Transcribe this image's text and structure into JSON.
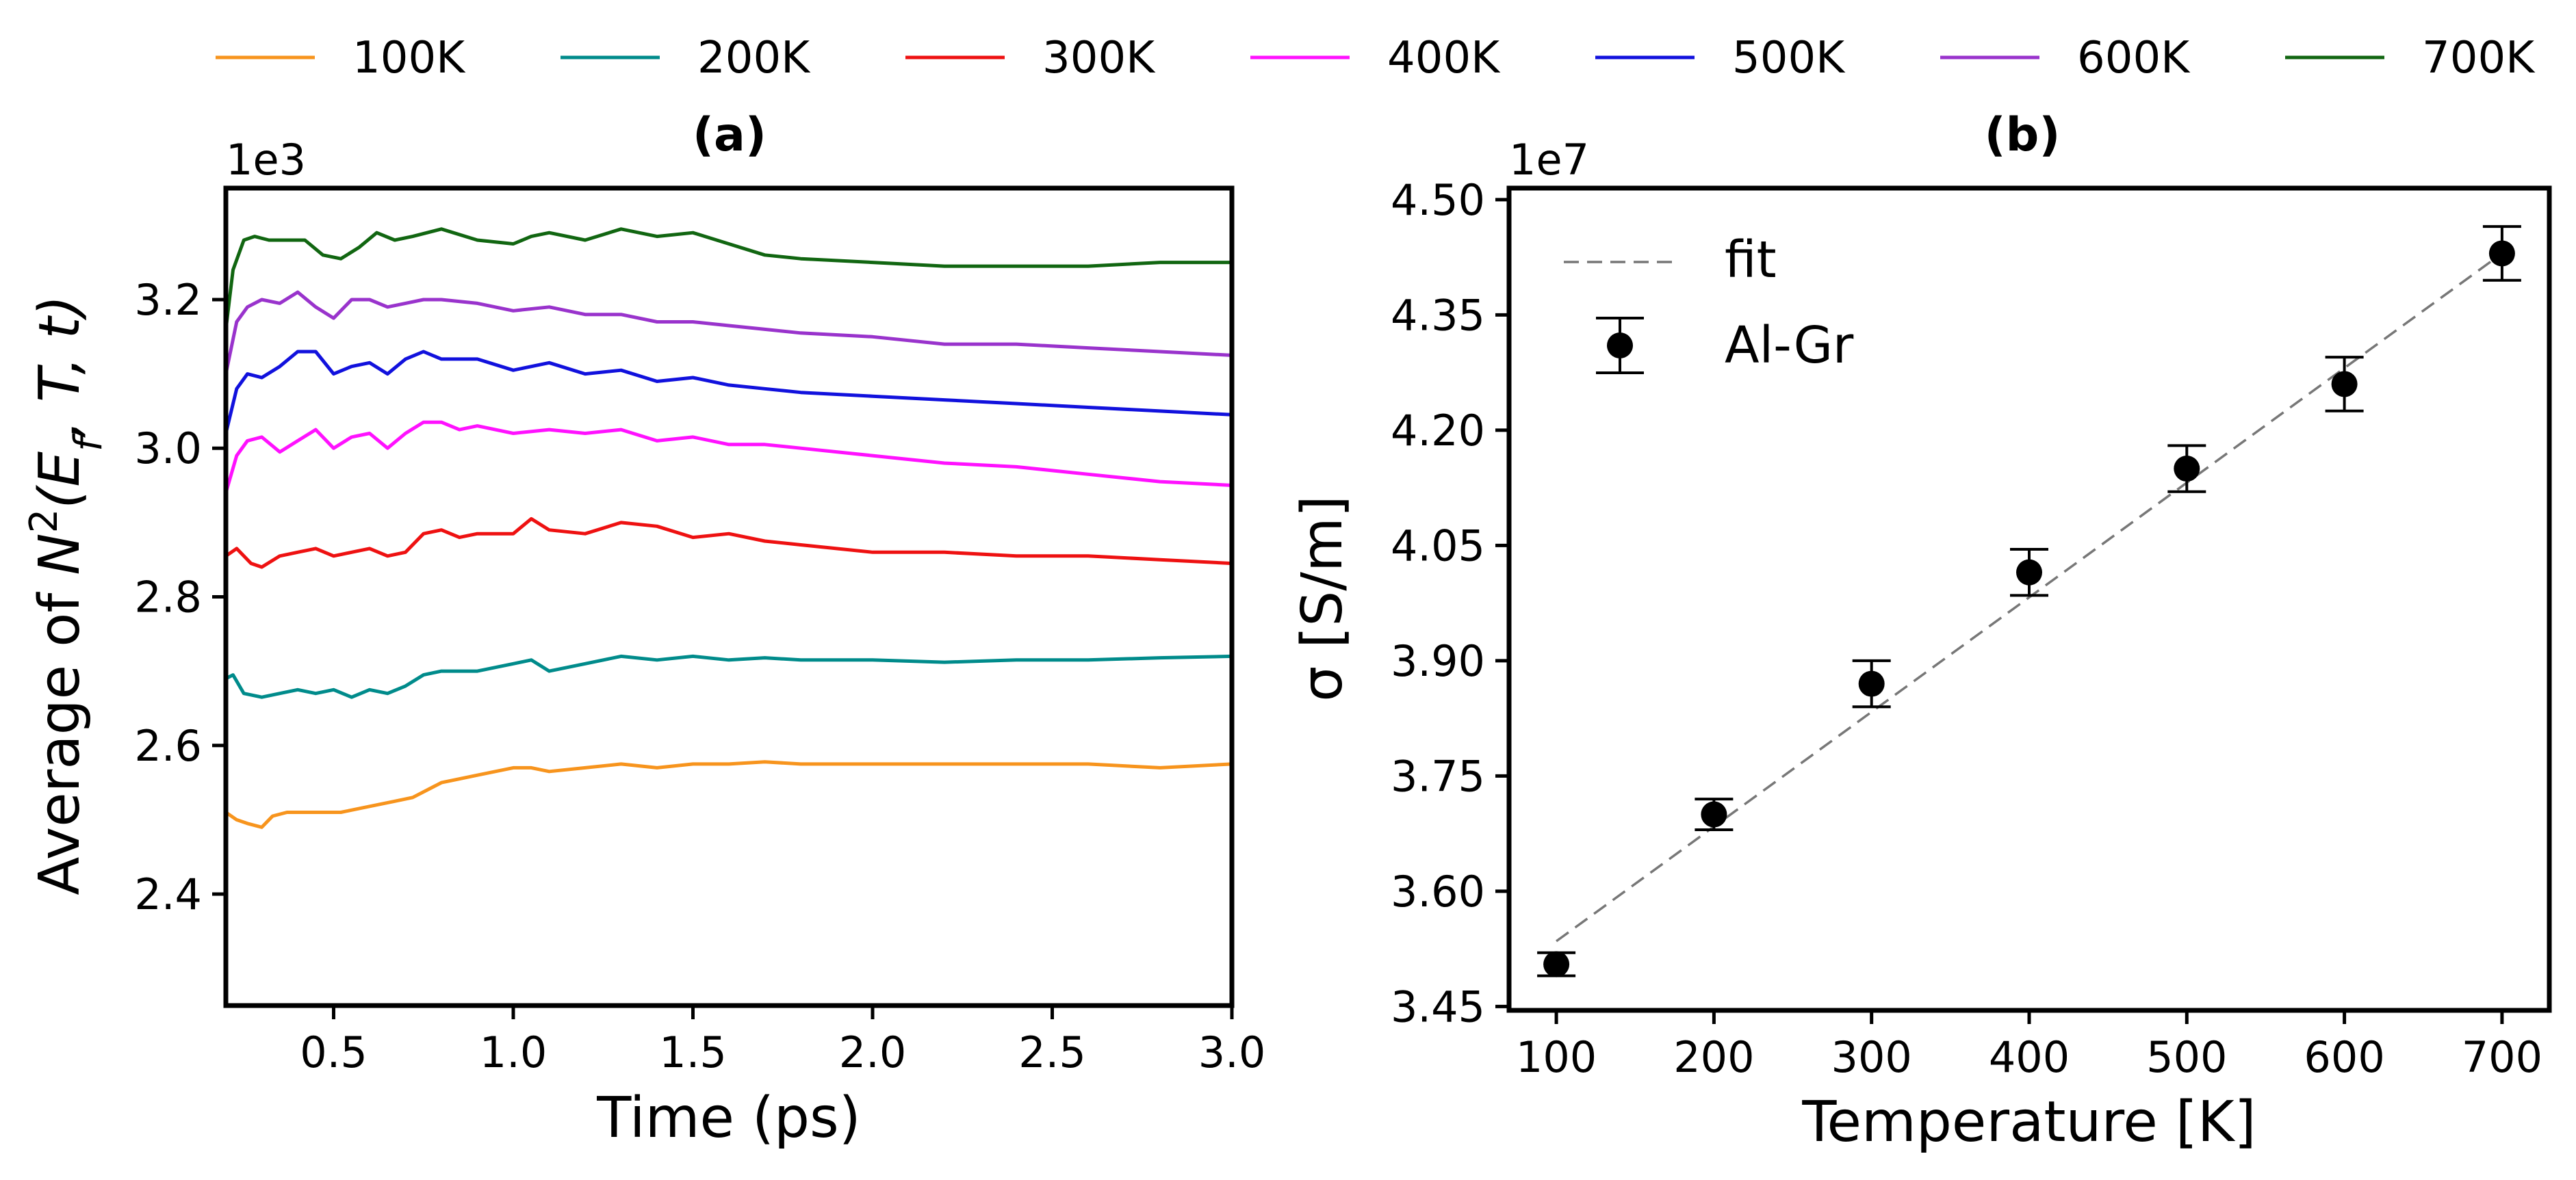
{
  "legend": {
    "placement": "top-center",
    "entries": [
      {
        "name": "100K",
        "color": "#f7941d"
      },
      {
        "name": "200K",
        "color": "#008b8b"
      },
      {
        "name": "300K",
        "color": "#ee1111"
      },
      {
        "name": "400K",
        "color": "#ff11ff"
      },
      {
        "name": "500K",
        "color": "#1111dd"
      },
      {
        "name": "600K",
        "color": "#9933cc"
      },
      {
        "name": "700K",
        "color": "#116611"
      }
    ]
  },
  "chart_data": [
    {
      "type": "line",
      "panel_label": "(a)",
      "title": "",
      "xlabel": "Time (ps)",
      "ylabel_parts": {
        "prefix": "Average of ",
        "symbol": "N",
        "sup": "2",
        "args": "(E",
        "sub": "f",
        "rest": ", T, t)"
      },
      "y_offset_text": "1e3",
      "xlim": [
        0.2,
        3.0
      ],
      "ylim": [
        2.25,
        3.35
      ],
      "x_ticks": [
        0.5,
        1.0,
        1.5,
        2.0,
        2.5,
        3.0
      ],
      "x_tick_labels": [
        "0.5",
        "1.0",
        "1.5",
        "2.0",
        "2.5",
        "3.0"
      ],
      "y_ticks": [
        2.4,
        2.6,
        2.8,
        3.0,
        3.2
      ],
      "y_tick_labels": [
        "2.4",
        "2.6",
        "2.8",
        "3.0",
        "3.2"
      ],
      "grid": false,
      "series": [
        {
          "name": "100K",
          "color": "#f7941d",
          "x": [
            0.2,
            0.23,
            0.26,
            0.3,
            0.33,
            0.37,
            0.42,
            0.47,
            0.52,
            0.57,
            0.62,
            0.67,
            0.72,
            0.8,
            0.9,
            1.0,
            1.05,
            1.1,
            1.2,
            1.3,
            1.4,
            1.5,
            1.6,
            1.7,
            1.8,
            2.0,
            2.2,
            2.4,
            2.6,
            2.8,
            3.0
          ],
          "y": [
            2.51,
            2.5,
            2.495,
            2.49,
            2.505,
            2.51,
            2.51,
            2.51,
            2.51,
            2.515,
            2.52,
            2.525,
            2.53,
            2.55,
            2.56,
            2.57,
            2.57,
            2.565,
            2.57,
            2.575,
            2.57,
            2.575,
            2.575,
            2.578,
            2.575,
            2.575,
            2.575,
            2.575,
            2.575,
            2.57,
            2.575
          ]
        },
        {
          "name": "200K",
          "color": "#008b8b",
          "x": [
            0.2,
            0.22,
            0.25,
            0.3,
            0.35,
            0.4,
            0.45,
            0.5,
            0.55,
            0.6,
            0.65,
            0.7,
            0.75,
            0.8,
            0.9,
            1.0,
            1.05,
            1.1,
            1.2,
            1.3,
            1.4,
            1.5,
            1.6,
            1.7,
            1.8,
            2.0,
            2.2,
            2.4,
            2.6,
            2.8,
            3.0
          ],
          "y": [
            2.69,
            2.695,
            2.67,
            2.665,
            2.67,
            2.675,
            2.67,
            2.675,
            2.665,
            2.675,
            2.67,
            2.68,
            2.695,
            2.7,
            2.7,
            2.71,
            2.715,
            2.7,
            2.71,
            2.72,
            2.715,
            2.72,
            2.715,
            2.718,
            2.715,
            2.715,
            2.712,
            2.715,
            2.715,
            2.718,
            2.72
          ]
        },
        {
          "name": "300K",
          "color": "#ee1111",
          "x": [
            0.2,
            0.23,
            0.27,
            0.3,
            0.35,
            0.4,
            0.45,
            0.5,
            0.55,
            0.6,
            0.65,
            0.7,
            0.75,
            0.8,
            0.85,
            0.9,
            1.0,
            1.05,
            1.1,
            1.2,
            1.3,
            1.4,
            1.5,
            1.6,
            1.7,
            1.8,
            2.0,
            2.2,
            2.4,
            2.6,
            2.8,
            3.0
          ],
          "y": [
            2.855,
            2.865,
            2.845,
            2.84,
            2.855,
            2.86,
            2.865,
            2.855,
            2.86,
            2.865,
            2.855,
            2.86,
            2.885,
            2.89,
            2.88,
            2.885,
            2.885,
            2.905,
            2.89,
            2.885,
            2.9,
            2.895,
            2.88,
            2.885,
            2.875,
            2.87,
            2.86,
            2.86,
            2.855,
            2.855,
            2.85,
            2.845
          ]
        },
        {
          "name": "400K",
          "color": "#ff11ff",
          "x": [
            0.2,
            0.23,
            0.26,
            0.3,
            0.35,
            0.4,
            0.45,
            0.5,
            0.55,
            0.6,
            0.65,
            0.7,
            0.75,
            0.8,
            0.85,
            0.9,
            1.0,
            1.1,
            1.2,
            1.3,
            1.4,
            1.5,
            1.6,
            1.7,
            1.8,
            2.0,
            2.2,
            2.4,
            2.6,
            2.8,
            3.0
          ],
          "y": [
            2.94,
            2.99,
            3.01,
            3.015,
            2.995,
            3.01,
            3.025,
            3.0,
            3.015,
            3.02,
            3.0,
            3.02,
            3.035,
            3.035,
            3.025,
            3.03,
            3.02,
            3.025,
            3.02,
            3.025,
            3.01,
            3.015,
            3.005,
            3.005,
            3.0,
            2.99,
            2.98,
            2.975,
            2.965,
            2.955,
            2.95
          ]
        },
        {
          "name": "500K",
          "color": "#1111dd",
          "x": [
            0.2,
            0.23,
            0.26,
            0.3,
            0.35,
            0.4,
            0.45,
            0.5,
            0.55,
            0.6,
            0.65,
            0.7,
            0.75,
            0.8,
            0.85,
            0.9,
            1.0,
            1.1,
            1.2,
            1.3,
            1.4,
            1.5,
            1.6,
            1.7,
            1.8,
            2.0,
            2.2,
            2.4,
            2.6,
            2.8,
            3.0
          ],
          "y": [
            3.02,
            3.08,
            3.1,
            3.095,
            3.11,
            3.13,
            3.13,
            3.1,
            3.11,
            3.115,
            3.1,
            3.12,
            3.13,
            3.12,
            3.12,
            3.12,
            3.105,
            3.115,
            3.1,
            3.105,
            3.09,
            3.095,
            3.085,
            3.08,
            3.075,
            3.07,
            3.065,
            3.06,
            3.055,
            3.05,
            3.045
          ]
        },
        {
          "name": "600K",
          "color": "#9933cc",
          "x": [
            0.2,
            0.23,
            0.26,
            0.3,
            0.35,
            0.4,
            0.45,
            0.5,
            0.55,
            0.6,
            0.65,
            0.7,
            0.75,
            0.8,
            0.9,
            1.0,
            1.1,
            1.2,
            1.3,
            1.4,
            1.5,
            1.6,
            1.7,
            1.8,
            2.0,
            2.2,
            2.4,
            2.6,
            2.8,
            3.0
          ],
          "y": [
            3.1,
            3.17,
            3.19,
            3.2,
            3.195,
            3.21,
            3.19,
            3.175,
            3.2,
            3.2,
            3.19,
            3.195,
            3.2,
            3.2,
            3.195,
            3.185,
            3.19,
            3.18,
            3.18,
            3.17,
            3.17,
            3.165,
            3.16,
            3.155,
            3.15,
            3.14,
            3.14,
            3.135,
            3.13,
            3.125
          ]
        },
        {
          "name": "700K",
          "color": "#116611",
          "x": [
            0.2,
            0.22,
            0.25,
            0.28,
            0.32,
            0.37,
            0.42,
            0.47,
            0.52,
            0.57,
            0.62,
            0.67,
            0.72,
            0.8,
            0.9,
            1.0,
            1.05,
            1.1,
            1.2,
            1.3,
            1.4,
            1.5,
            1.6,
            1.7,
            1.8,
            2.0,
            2.2,
            2.4,
            2.6,
            2.8,
            3.0
          ],
          "y": [
            3.16,
            3.24,
            3.28,
            3.285,
            3.28,
            3.28,
            3.28,
            3.26,
            3.255,
            3.27,
            3.29,
            3.28,
            3.285,
            3.295,
            3.28,
            3.275,
            3.285,
            3.29,
            3.28,
            3.295,
            3.285,
            3.29,
            3.275,
            3.26,
            3.255,
            3.25,
            3.245,
            3.245,
            3.245,
            3.25,
            3.25
          ]
        }
      ]
    },
    {
      "type": "scatter",
      "panel_label": "(b)",
      "title": "",
      "xlabel": "Temperature [K]",
      "ylabel": "σ [S/m]",
      "y_offset_text": "1e7",
      "xlim": [
        70,
        730
      ],
      "ylim": [
        3.445,
        4.515
      ],
      "x_ticks": [
        100,
        200,
        300,
        400,
        500,
        600,
        700
      ],
      "x_tick_labels": [
        "100",
        "200",
        "300",
        "400",
        "500",
        "600",
        "700"
      ],
      "y_ticks": [
        3.45,
        3.6,
        3.75,
        3.9,
        4.05,
        4.2,
        4.35,
        4.5
      ],
      "y_tick_labels": [
        "3.45",
        "3.60",
        "3.75",
        "3.90",
        "4.05",
        "4.20",
        "4.35",
        "4.50"
      ],
      "grid": false,
      "legend_placement": "upper-left",
      "legend_entries": [
        "fit",
        "Al-Gr"
      ],
      "points": {
        "name": "Al-Gr",
        "color": "#000000",
        "x": [
          100,
          200,
          300,
          400,
          500,
          600,
          700
        ],
        "y": [
          3.505,
          3.7,
          3.87,
          4.015,
          4.15,
          4.26,
          4.43
        ],
        "yerr": [
          0.015,
          0.02,
          0.03,
          0.03,
          0.03,
          0.035,
          0.035
        ]
      },
      "fit": {
        "name": "fit",
        "color": "#777777",
        "dashed": true,
        "x": [
          100,
          700
        ],
        "y": [
          3.535,
          4.43
        ]
      }
    }
  ]
}
